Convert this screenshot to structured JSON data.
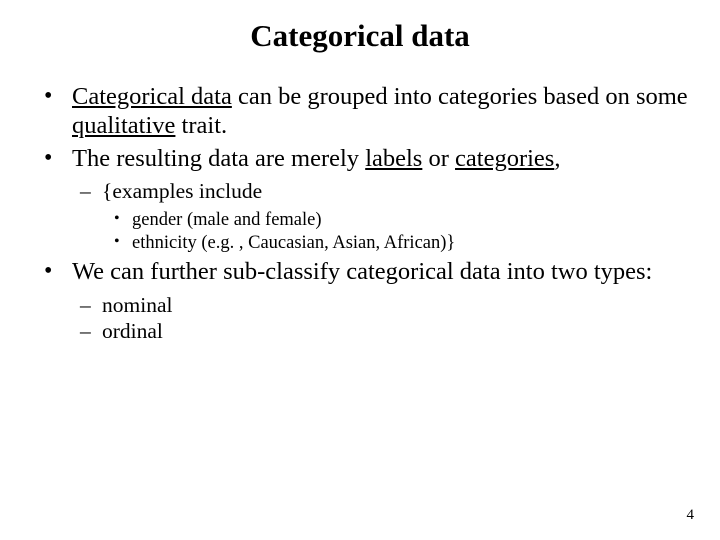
{
  "title": "Categorical data",
  "bullets": {
    "b1_pre": "Categorical data",
    "b1_post": " can be grouped into categories based on some ",
    "b1_qual": "qualitative",
    "b1_end": " trait.",
    "b2_pre": "The resulting data are merely ",
    "b2_labels": "labels",
    "b2_or": " or ",
    "b2_cat": "categories",
    "b2_comma": ",",
    "sub_examples": "{examples include",
    "sub_gender": "gender (male and female)",
    "sub_ethnicity": "ethnicity (e.g. , Caucasian, Asian, African)}",
    "b3": "We can further sub-classify categorical data into two types:",
    "sub_nominal": "nominal",
    "sub_ordinal": "ordinal"
  },
  "page_number": "4",
  "colors": {
    "text": "#000000",
    "background": "#ffffff"
  }
}
